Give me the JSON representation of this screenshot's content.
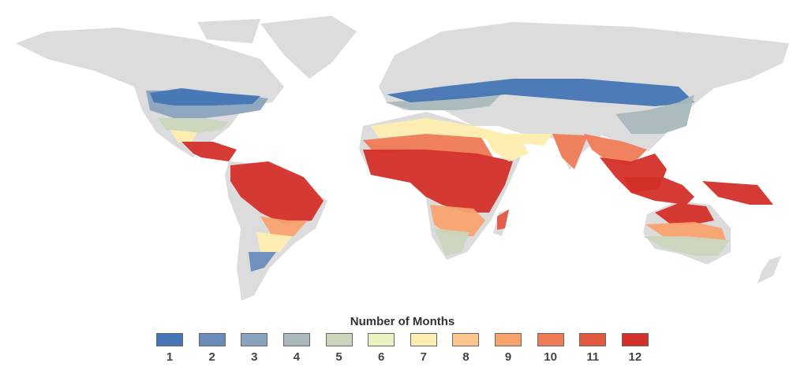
{
  "legend": {
    "title": "Number of Months",
    "items": [
      {
        "label": "1",
        "color": "#4575b4"
      },
      {
        "label": "2",
        "color": "#6a8cba"
      },
      {
        "label": "3",
        "color": "#8aa3bd"
      },
      {
        "label": "4",
        "color": "#a9b8ba"
      },
      {
        "label": "5",
        "color": "#cbd5bc"
      },
      {
        "label": "6",
        "color": "#ebf1c0"
      },
      {
        "label": "7",
        "color": "#feedb0"
      },
      {
        "label": "8",
        "color": "#fdc68f"
      },
      {
        "label": "9",
        "color": "#f8a26e"
      },
      {
        "label": "10",
        "color": "#f07b57"
      },
      {
        "label": "11",
        "color": "#e2593f"
      },
      {
        "label": "12",
        "color": "#d42f2a"
      }
    ]
  },
  "map": {
    "land_color": "#dcdcdc"
  }
}
